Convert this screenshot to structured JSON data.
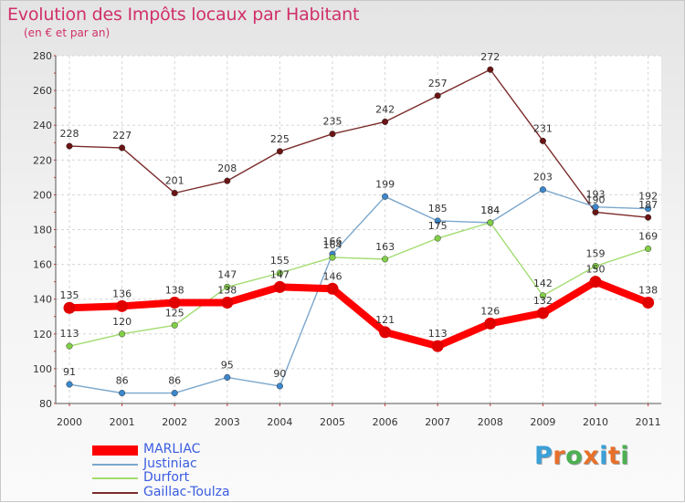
{
  "header": {
    "title": "Evolution des Impôts locaux par Habitant",
    "subtitle": "(en € et par an)"
  },
  "chart_data": {
    "type": "line",
    "title": "Evolution des Impôts locaux par Habitant",
    "subtitle": "(en € et par an)",
    "xlabel": "",
    "ylabel": "",
    "x": [
      "2000",
      "2001",
      "2002",
      "2003",
      "2004",
      "2005",
      "2006",
      "2007",
      "2008",
      "2009",
      "2010",
      "2011"
    ],
    "ylim": [
      80,
      280
    ],
    "yticks": [
      80,
      100,
      120,
      140,
      160,
      180,
      200,
      220,
      240,
      260,
      280
    ],
    "grid": true,
    "legend_position": "bottom-left",
    "series": [
      {
        "name": "MARLIAC",
        "values": [
          135,
          136,
          138,
          138,
          147,
          146,
          121,
          113,
          126,
          132,
          150,
          138
        ],
        "color": "#ff0000",
        "dot": "#e00000",
        "bold": true
      },
      {
        "name": "Justiniac",
        "values": [
          91,
          86,
          86,
          95,
          90,
          166,
          199,
          185,
          184,
          203,
          193,
          192
        ],
        "color": "#7ba7cd",
        "dot": "#3c87cc",
        "bold": false
      },
      {
        "name": "Durfort",
        "values": [
          113,
          120,
          125,
          147,
          155,
          164,
          163,
          175,
          184,
          142,
          159,
          169
        ],
        "color": "#a3dc70",
        "dot": "#82cf48",
        "bold": false
      },
      {
        "name": "Gaillac-Toulza",
        "values": [
          228,
          227,
          201,
          208,
          225,
          235,
          242,
          257,
          272,
          231,
          190,
          187
        ],
        "color": "#7a2a2a",
        "dot": "#6a1414",
        "bold": false
      }
    ]
  },
  "legend": {
    "items": [
      "MARLIAC",
      "Justiniac",
      "Durfort",
      "Gaillac-Toulza"
    ]
  },
  "logo": {
    "letters": [
      "P",
      "r",
      "o",
      "x",
      "i",
      "t",
      "i"
    ],
    "colors": [
      "#3aa0d8",
      "#e8702a",
      "#4caf50",
      "#e8702a",
      "#3aa0d8",
      "#e8702a",
      "#4caf50"
    ]
  }
}
